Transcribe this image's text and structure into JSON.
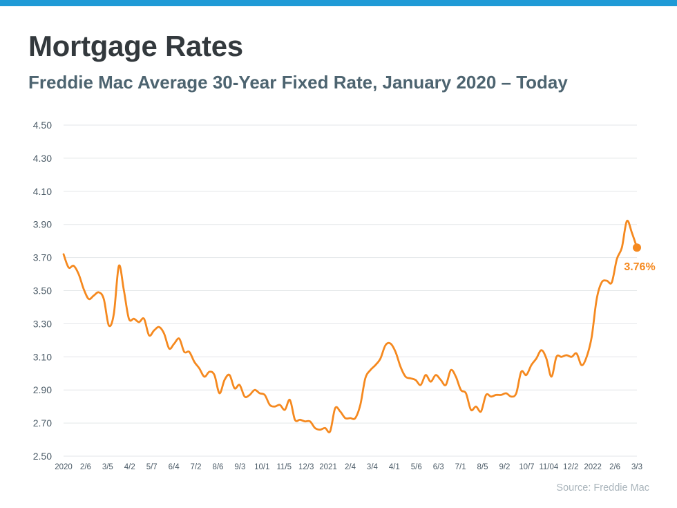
{
  "header": {
    "title": "Mortgage Rates",
    "subtitle": "Freddie Mac Average 30-Year Fixed Rate, January 2020 – Today"
  },
  "footer": {
    "source": "Source: Freddie Mac"
  },
  "colors": {
    "accent_bar": "#1f9ad6",
    "line": "#f5891f",
    "grid": "#e3e6e8",
    "axis_text": "#4a5a66"
  },
  "chart_data": {
    "type": "line",
    "title": "Mortgage Rates",
    "subtitle": "Freddie Mac Average 30-Year Fixed Rate, January 2020 – Today",
    "xlabel": "",
    "ylabel": "",
    "ylim": [
      2.5,
      4.5
    ],
    "y_ticks": [
      "4.50",
      "4.30",
      "4.10",
      "3.90",
      "3.70",
      "3.50",
      "3.30",
      "3.10",
      "2.90",
      "2.70",
      "2.50"
    ],
    "x_tick_labels": [
      "2020",
      "2/6",
      "3/5",
      "4/2",
      "5/7",
      "6/4",
      "7/2",
      "8/6",
      "9/3",
      "10/1",
      "11/5",
      "12/3",
      "2021",
      "2/4",
      "3/4",
      "4/1",
      "5/6",
      "6/3",
      "7/1",
      "8/5",
      "9/2",
      "10/7",
      "11/04",
      "12/2",
      "2022",
      "2/6",
      "3/3"
    ],
    "grid": true,
    "series": [
      {
        "values": [
          3.72,
          3.64,
          3.65,
          3.6,
          3.51,
          3.45,
          3.47,
          3.49,
          3.45,
          3.29,
          3.36,
          3.65,
          3.5,
          3.33,
          3.33,
          3.31,
          3.33,
          3.23,
          3.26,
          3.28,
          3.24,
          3.15,
          3.18,
          3.21,
          3.13,
          3.13,
          3.07,
          3.03,
          2.98,
          3.01,
          2.99,
          2.88,
          2.96,
          2.99,
          2.91,
          2.93,
          2.86,
          2.87,
          2.9,
          2.88,
          2.87,
          2.81,
          2.8,
          2.81,
          2.78,
          2.84,
          2.72,
          2.72,
          2.71,
          2.71,
          2.67,
          2.66,
          2.67,
          2.65,
          2.79,
          2.77,
          2.73,
          2.73,
          2.73,
          2.81,
          2.97,
          3.02,
          3.05,
          3.09,
          3.17,
          3.18,
          3.13,
          3.04,
          2.98,
          2.97,
          2.96,
          2.93,
          2.99,
          2.95,
          2.99,
          2.96,
          2.93,
          3.02,
          2.98,
          2.9,
          2.88,
          2.78,
          2.8,
          2.77,
          2.87,
          2.86,
          2.87,
          2.87,
          2.88,
          2.86,
          2.88,
          3.01,
          2.99,
          3.05,
          3.09,
          3.14,
          3.09,
          2.98,
          3.1,
          3.1,
          3.11,
          3.1,
          3.12,
          3.05,
          3.1,
          3.22,
          3.45,
          3.55,
          3.56,
          3.55,
          3.69,
          3.76,
          3.92,
          3.85,
          3.76
        ]
      }
    ],
    "annotation": {
      "label": "3.76%",
      "value": 3.76
    }
  }
}
